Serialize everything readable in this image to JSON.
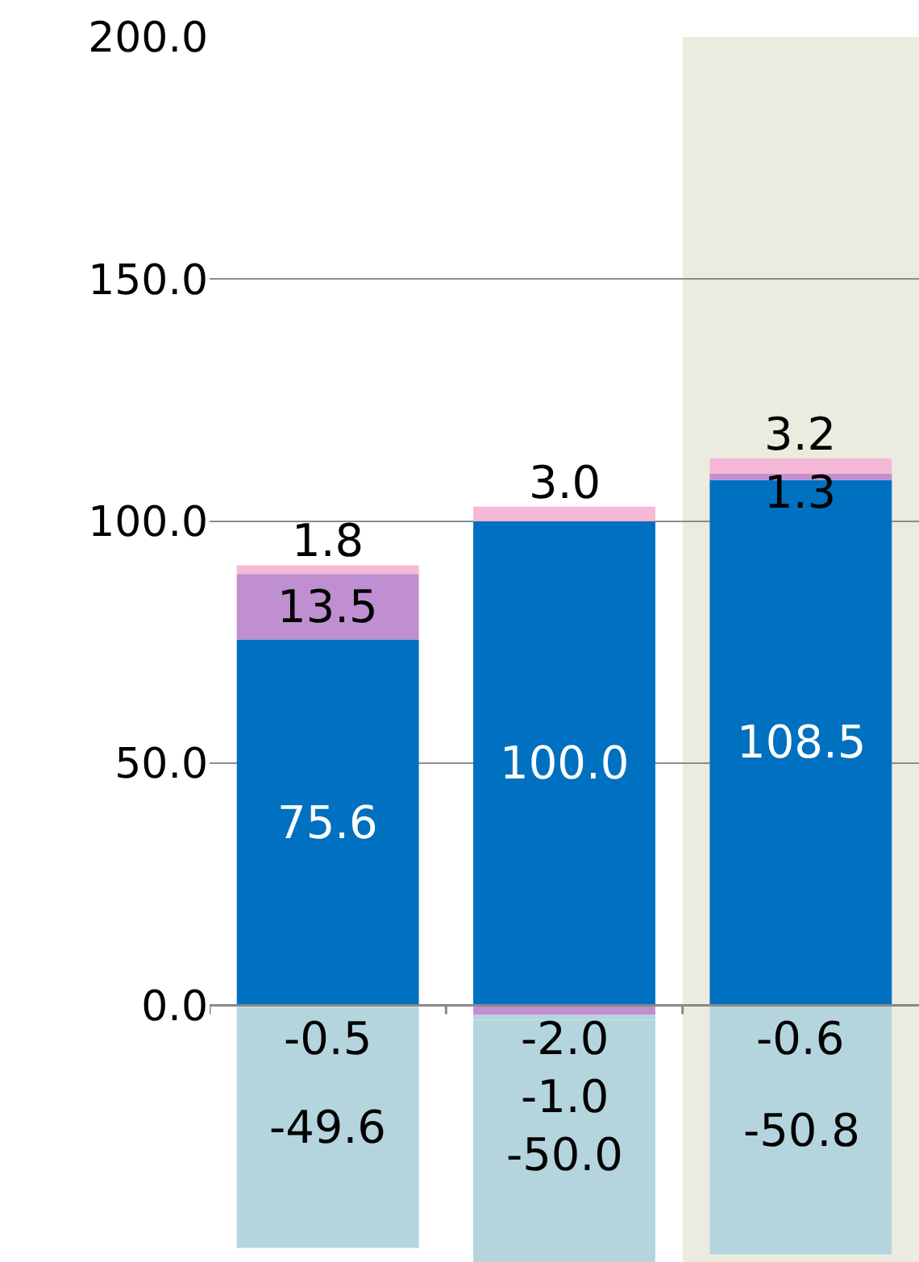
{
  "chart_data": {
    "type": "bar",
    "stacked": true,
    "categories": [
      null,
      null,
      null
    ],
    "series": [
      {
        "color": "#0070c0",
        "values": [
          75.6,
          100.0,
          108.5
        ],
        "value_labels": [
          "75.6",
          "100.0",
          "108.5"
        ]
      },
      {
        "color": "#bf8fd1",
        "values": [
          13.5,
          -2.0,
          1.3
        ],
        "value_labels": [
          "13.5",
          "-2.0",
          "1.3"
        ]
      },
      {
        "color": "#f6b8d6",
        "values": [
          1.8,
          3.0,
          3.2
        ],
        "value_labels": [
          "1.8",
          "3.0",
          "3.2"
        ]
      },
      {
        "color": "#b4d5dd",
        "values": [
          -0.5,
          -1.0,
          -0.6
        ],
        "value_labels": [
          "-0.5",
          "-1.0",
          "-0.6"
        ]
      },
      {
        "color": "#b4d5dd",
        "values": [
          -49.6,
          -50.0,
          -50.8
        ],
        "value_labels": [
          "-49.6",
          "-50.0",
          "-50.8"
        ]
      }
    ],
    "ylim": [
      -53,
      200
    ],
    "yticks": [
      {
        "value": 0,
        "label": "0.0"
      },
      {
        "value": 50,
        "label": "50.0"
      },
      {
        "value": 100,
        "label": "100.0"
      },
      {
        "value": 150,
        "label": "150.0"
      },
      {
        "value": 200,
        "label": "200.0"
      }
    ],
    "grid": "y"
  }
}
